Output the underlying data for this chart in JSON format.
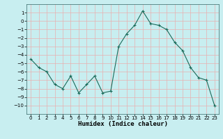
{
  "x": [
    0,
    1,
    2,
    3,
    4,
    5,
    6,
    7,
    8,
    9,
    10,
    11,
    12,
    13,
    14,
    15,
    16,
    17,
    18,
    19,
    20,
    21,
    22,
    23
  ],
  "y": [
    -4.5,
    -5.5,
    -6.0,
    -7.5,
    -8.0,
    -6.5,
    -8.5,
    -7.5,
    -6.5,
    -8.5,
    -8.3,
    -3.0,
    -1.5,
    -0.5,
    1.2,
    -0.3,
    -0.5,
    -1.0,
    -2.5,
    -3.5,
    -5.5,
    -6.7,
    -7.0,
    -10.0
  ],
  "line_color": "#1a6b5a",
  "marker": "+",
  "marker_size": 3.5,
  "linewidth": 0.8,
  "background_color": "#c8eef0",
  "grid_color": "#e8b0b0",
  "xlabel": "Humidex (Indice chaleur)",
  "xlabel_fontsize": 6.5,
  "ylim": [
    -11,
    2
  ],
  "xlim": [
    -0.5,
    23.5
  ],
  "yticks": [
    -10,
    -9,
    -8,
    -7,
    -6,
    -5,
    -4,
    -3,
    -2,
    -1,
    0,
    1
  ],
  "xtick_labels": [
    "0",
    "1",
    "2",
    "3",
    "4",
    "5",
    "6",
    "7",
    "8",
    "9",
    "10",
    "11",
    "12",
    "13",
    "14",
    "15",
    "16",
    "17",
    "18",
    "19",
    "20",
    "21",
    "22",
    "23"
  ],
  "tick_fontsize": 5.0
}
